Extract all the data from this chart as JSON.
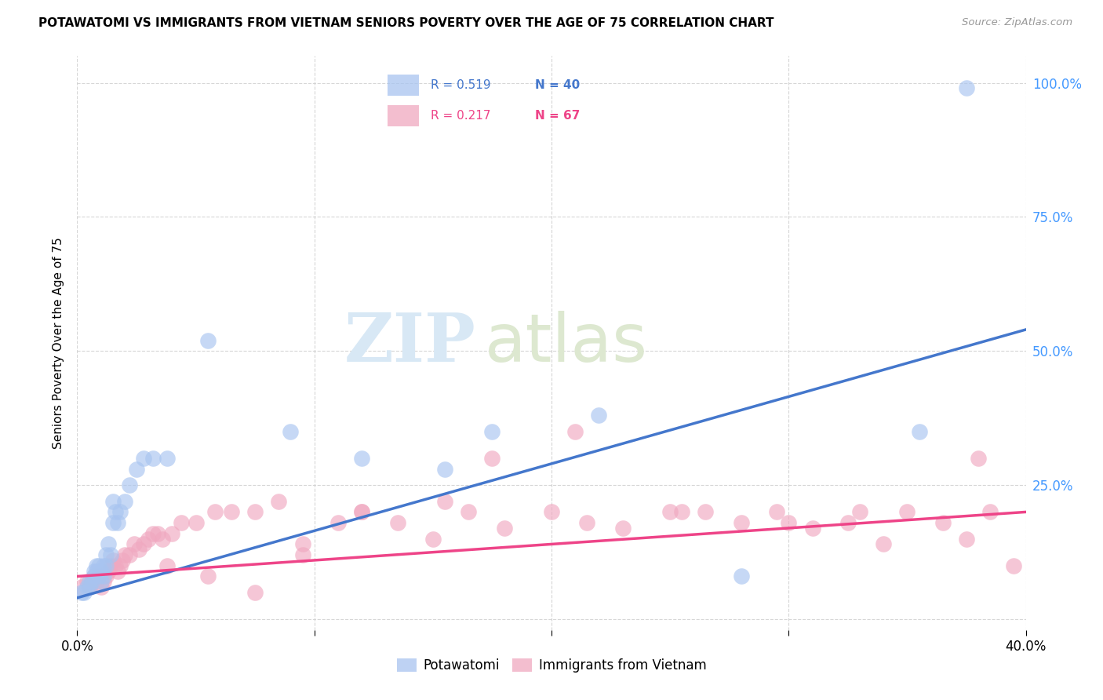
{
  "title": "POTAWATOMI VS IMMIGRANTS FROM VIETNAM SENIORS POVERTY OVER THE AGE OF 75 CORRELATION CHART",
  "source": "Source: ZipAtlas.com",
  "ylabel": "Seniors Poverty Over the Age of 75",
  "xmin": 0.0,
  "xmax": 0.4,
  "ymin": -0.02,
  "ymax": 1.05,
  "blue_color": "#a8c4f0",
  "pink_color": "#f0a8c0",
  "blue_line_color": "#4477cc",
  "pink_line_color": "#ee4488",
  "tick_color": "#4499ff",
  "watermark_zip": "ZIP",
  "watermark_atlas": "atlas",
  "legend_r1": "R = 0.519",
  "legend_n1": "N = 40",
  "legend_r2": "R = 0.217",
  "legend_n2": "N = 67",
  "blue_scatter_x": [
    0.002,
    0.003,
    0.004,
    0.005,
    0.005,
    0.006,
    0.007,
    0.007,
    0.008,
    0.008,
    0.009,
    0.009,
    0.01,
    0.01,
    0.011,
    0.011,
    0.012,
    0.012,
    0.013,
    0.014,
    0.015,
    0.015,
    0.016,
    0.017,
    0.018,
    0.02,
    0.022,
    0.025,
    0.028,
    0.032,
    0.038,
    0.055,
    0.09,
    0.12,
    0.155,
    0.175,
    0.22,
    0.28,
    0.355,
    0.375
  ],
  "blue_scatter_y": [
    0.05,
    0.05,
    0.06,
    0.06,
    0.07,
    0.07,
    0.08,
    0.09,
    0.09,
    0.1,
    0.08,
    0.1,
    0.07,
    0.09,
    0.08,
    0.1,
    0.12,
    0.1,
    0.14,
    0.12,
    0.18,
    0.22,
    0.2,
    0.18,
    0.2,
    0.22,
    0.25,
    0.28,
    0.3,
    0.3,
    0.3,
    0.52,
    0.35,
    0.3,
    0.28,
    0.35,
    0.38,
    0.08,
    0.35,
    0.99
  ],
  "pink_scatter_x": [
    0.002,
    0.004,
    0.005,
    0.006,
    0.007,
    0.008,
    0.009,
    0.01,
    0.011,
    0.012,
    0.013,
    0.014,
    0.015,
    0.016,
    0.017,
    0.018,
    0.019,
    0.02,
    0.022,
    0.024,
    0.026,
    0.028,
    0.03,
    0.032,
    0.034,
    0.036,
    0.04,
    0.044,
    0.05,
    0.058,
    0.065,
    0.075,
    0.085,
    0.095,
    0.11,
    0.12,
    0.135,
    0.15,
    0.165,
    0.18,
    0.2,
    0.215,
    0.23,
    0.25,
    0.265,
    0.28,
    0.295,
    0.31,
    0.325,
    0.34,
    0.35,
    0.365,
    0.375,
    0.385,
    0.3,
    0.155,
    0.175,
    0.12,
    0.095,
    0.075,
    0.055,
    0.038,
    0.21,
    0.255,
    0.33,
    0.38,
    0.395
  ],
  "pink_scatter_y": [
    0.06,
    0.07,
    0.06,
    0.07,
    0.08,
    0.07,
    0.08,
    0.06,
    0.07,
    0.08,
    0.09,
    0.1,
    0.11,
    0.1,
    0.09,
    0.1,
    0.11,
    0.12,
    0.12,
    0.14,
    0.13,
    0.14,
    0.15,
    0.16,
    0.16,
    0.15,
    0.16,
    0.18,
    0.18,
    0.2,
    0.2,
    0.2,
    0.22,
    0.14,
    0.18,
    0.2,
    0.18,
    0.15,
    0.2,
    0.17,
    0.2,
    0.18,
    0.17,
    0.2,
    0.2,
    0.18,
    0.2,
    0.17,
    0.18,
    0.14,
    0.2,
    0.18,
    0.15,
    0.2,
    0.18,
    0.22,
    0.3,
    0.2,
    0.12,
    0.05,
    0.08,
    0.1,
    0.35,
    0.2,
    0.2,
    0.3,
    0.1
  ],
  "blue_line_x0": 0.0,
  "blue_line_y0": 0.04,
  "blue_line_x1": 0.4,
  "blue_line_y1": 0.54,
  "pink_line_x0": 0.0,
  "pink_line_y0": 0.08,
  "pink_line_x1": 0.4,
  "pink_line_y1": 0.2
}
